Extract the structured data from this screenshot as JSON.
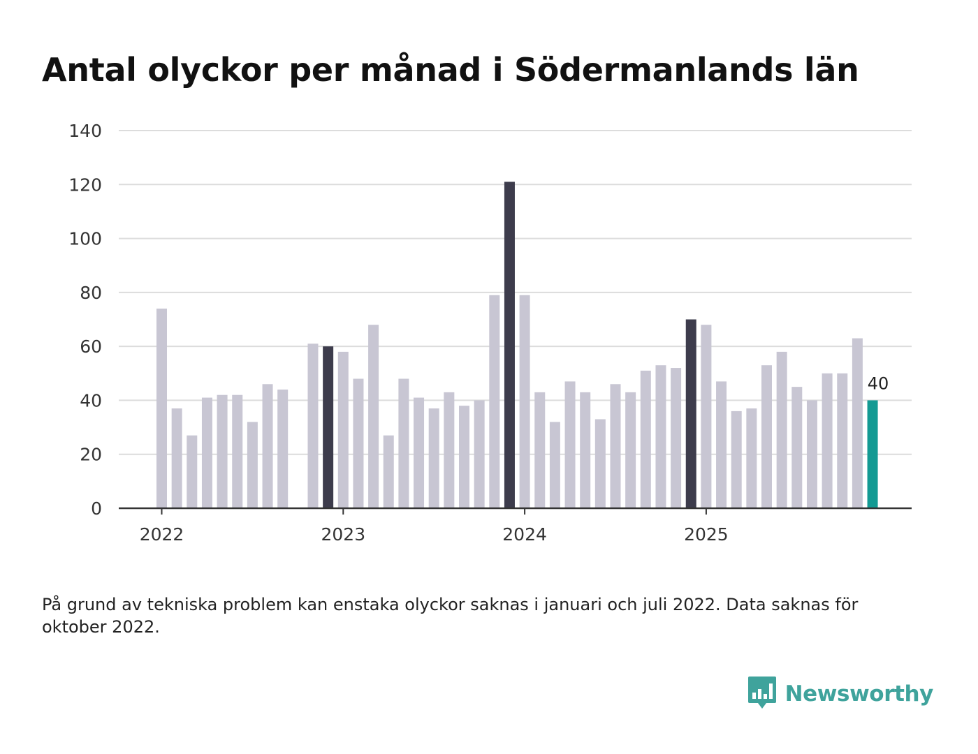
{
  "title": "Antal olyckor per månad i Södermanlands län",
  "footnote": "På grund av tekniska problem kan enstaka olyckor saknas i januari och juli 2022. Data saknas för oktober 2022.",
  "brand": {
    "name": "Newsworthy",
    "logo_icon": "newsworthy-bar-chart-logo-icon"
  },
  "colors": {
    "default_bar": "#c8c6d3",
    "highlight_bar": "#3d3c4c",
    "latest_bar": "#139a93",
    "gridline": "#dcdcdc",
    "axis": "#333333",
    "brand": "#3fa39c"
  },
  "chart_data": {
    "type": "bar",
    "title": "Antal olyckor per månad i Södermanlands län",
    "xlabel": "",
    "ylabel": "",
    "ylim": [
      0,
      140
    ],
    "y_ticks": [
      0,
      20,
      40,
      60,
      80,
      100,
      120,
      140
    ],
    "x_tick_labels": [
      {
        "label": "2022",
        "month_index": 0
      },
      {
        "label": "2023",
        "month_index": 12
      },
      {
        "label": "2024",
        "month_index": 24
      },
      {
        "label": "2025",
        "month_index": 36
      }
    ],
    "grid": true,
    "months": [
      "2022-01",
      "2022-02",
      "2022-03",
      "2022-04",
      "2022-05",
      "2022-06",
      "2022-07",
      "2022-08",
      "2022-09",
      "2022-10",
      "2022-11",
      "2022-12",
      "2023-01",
      "2023-02",
      "2023-03",
      "2023-04",
      "2023-05",
      "2023-06",
      "2023-07",
      "2023-08",
      "2023-09",
      "2023-10",
      "2023-11",
      "2023-12",
      "2024-01",
      "2024-02",
      "2024-03",
      "2024-04",
      "2024-05",
      "2024-06",
      "2024-07",
      "2024-08",
      "2024-09",
      "2024-10",
      "2024-11",
      "2024-12",
      "2025-01",
      "2025-02",
      "2025-03",
      "2025-04",
      "2025-05",
      "2025-06",
      "2025-07",
      "2025-08",
      "2025-09",
      "2025-10",
      "2025-11",
      "2025-12"
    ],
    "values": [
      74,
      37,
      27,
      41,
      42,
      42,
      32,
      46,
      44,
      null,
      61,
      60,
      58,
      48,
      68,
      27,
      48,
      41,
      37,
      43,
      38,
      40,
      79,
      121,
      79,
      43,
      32,
      47,
      43,
      33,
      46,
      43,
      51,
      53,
      52,
      70,
      68,
      47,
      36,
      37,
      53,
      58,
      45,
      40,
      50,
      50,
      63,
      40
    ],
    "highlight": [
      "2022-12",
      "2023-12",
      "2024-12"
    ],
    "latest": "2025-12",
    "data_labels": [
      {
        "month": "2025-12",
        "text": "40"
      }
    ]
  }
}
